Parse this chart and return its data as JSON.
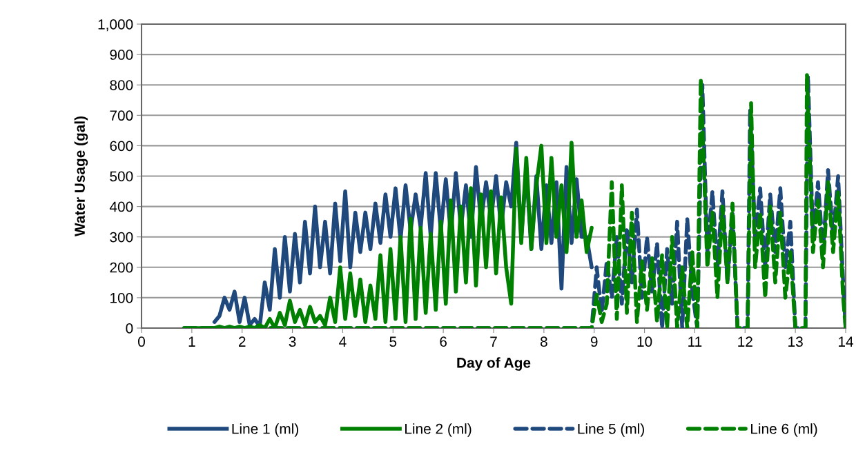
{
  "chart_data": {
    "type": "line",
    "xlabel": "Day of Age",
    "ylabel": "Water Usage (gal)",
    "xlim": [
      0,
      14
    ],
    "xticks": [
      0,
      1,
      2,
      3,
      4,
      5,
      6,
      7,
      8,
      9,
      10,
      11,
      12,
      13,
      14
    ],
    "ylim": [
      0,
      1000
    ],
    "yticks": [
      0,
      100,
      200,
      300,
      400,
      500,
      600,
      700,
      800,
      900,
      {
        "value": 1000,
        "label": "1,000"
      }
    ],
    "grid": "y",
    "legend": "bottom",
    "marker": "none",
    "series": [
      {
        "name": "Line 1 (ml)",
        "color": "#1f497d",
        "line_style": "solid",
        "x": [
          1.45,
          1.55,
          1.65,
          1.75,
          1.85,
          1.95,
          2.05,
          2.15,
          2.25,
          2.35,
          2.45,
          2.55,
          2.65,
          2.75,
          2.85,
          2.95,
          3.05,
          3.15,
          3.25,
          3.35,
          3.45,
          3.55,
          3.65,
          3.75,
          3.85,
          3.95,
          4.05,
          4.15,
          4.25,
          4.35,
          4.45,
          4.55,
          4.65,
          4.75,
          4.85,
          4.95,
          5.05,
          5.15,
          5.25,
          5.35,
          5.45,
          5.55,
          5.65,
          5.75,
          5.85,
          5.95,
          6.05,
          6.15,
          6.25,
          6.35,
          6.45,
          6.55,
          6.65,
          6.75,
          6.85,
          6.95,
          7.05,
          7.15,
          7.25,
          7.35,
          7.45,
          7.55,
          7.65,
          7.75,
          7.85,
          7.95,
          8.05,
          8.15,
          8.25,
          8.35,
          8.45,
          8.55,
          8.65,
          8.75,
          8.85,
          8.95
        ],
        "values": [
          20,
          40,
          100,
          60,
          120,
          20,
          100,
          10,
          30,
          5,
          150,
          60,
          260,
          100,
          300,
          120,
          310,
          150,
          350,
          180,
          400,
          200,
          350,
          180,
          410,
          220,
          450,
          200,
          380,
          250,
          380,
          260,
          410,
          280,
          440,
          300,
          460,
          290,
          470,
          320,
          440,
          330,
          510,
          300,
          510,
          320,
          490,
          310,
          510,
          330,
          470,
          300,
          530,
          350,
          480,
          360,
          500,
          330,
          480,
          400,
          610,
          300,
          520,
          260,
          500,
          260,
          470,
          280,
          480,
          130,
          530,
          280,
          490,
          300,
          300,
          200
        ]
      },
      {
        "name": "Line 2 (ml)",
        "color": "#008000",
        "line_style": "solid",
        "x": [
          0.85,
          0.95,
          1.05,
          1.15,
          1.25,
          1.35,
          1.45,
          1.55,
          1.65,
          1.75,
          1.85,
          1.95,
          2.05,
          2.15,
          2.25,
          2.35,
          2.45,
          2.55,
          2.65,
          2.75,
          2.85,
          2.95,
          3.05,
          3.15,
          3.25,
          3.35,
          3.45,
          3.55,
          3.65,
          3.75,
          3.85,
          3.95,
          4.05,
          4.15,
          4.25,
          4.35,
          4.45,
          4.55,
          4.65,
          4.75,
          4.85,
          4.95,
          5.05,
          5.15,
          5.25,
          5.35,
          5.45,
          5.55,
          5.65,
          5.75,
          5.85,
          5.95,
          6.05,
          6.15,
          6.25,
          6.35,
          6.45,
          6.55,
          6.65,
          6.75,
          6.85,
          6.95,
          7.05,
          7.15,
          7.25,
          7.35,
          7.45,
          7.55,
          7.65,
          7.75,
          7.85,
          7.95,
          8.05,
          8.15,
          8.25,
          8.35,
          8.45,
          8.55,
          8.65,
          8.75,
          8.85,
          8.95
        ],
        "values": [
          0,
          0,
          0,
          0,
          0,
          0,
          0,
          5,
          0,
          5,
          0,
          5,
          0,
          5,
          0,
          10,
          0,
          30,
          0,
          50,
          10,
          90,
          20,
          60,
          10,
          70,
          20,
          40,
          10,
          100,
          20,
          200,
          30,
          180,
          40,
          160,
          20,
          140,
          30,
          240,
          20,
          260,
          30,
          300,
          20,
          360,
          30,
          330,
          50,
          310,
          60,
          350,
          80,
          420,
          120,
          400,
          150,
          460,
          140,
          440,
          200,
          450,
          180,
          430,
          200,
          80,
          590,
          280,
          560,
          260,
          470,
          600,
          280,
          560,
          300,
          470,
          250,
          610,
          300,
          420,
          250,
          330
        ]
      },
      {
        "name": "Line 5 (ml)",
        "color": "#1f497d",
        "line_style": "dashed",
        "x": [
          0.85,
          8.85,
          8.95,
          9.05,
          9.15,
          9.25,
          9.35,
          9.45,
          9.55,
          9.65,
          9.75,
          9.85,
          9.95,
          10.05,
          10.15,
          10.25,
          10.35,
          10.45,
          10.55,
          10.65,
          10.75,
          10.85,
          10.95,
          11.05,
          11.15,
          11.25,
          11.35,
          11.45,
          11.55,
          11.65,
          11.75,
          11.85,
          11.95,
          12.05,
          12.1,
          12.2,
          12.3,
          12.4,
          12.5,
          12.6,
          12.7,
          12.8,
          12.9,
          13.0,
          13.1,
          13.2,
          13.25,
          13.35,
          13.45,
          13.55,
          13.65,
          13.75,
          13.85,
          13.95,
          14.0
        ],
        "values": [
          0,
          0,
          0,
          200,
          50,
          220,
          100,
          300,
          80,
          330,
          150,
          390,
          100,
          300,
          120,
          280,
          0,
          260,
          80,
          350,
          0,
          360,
          120,
          0,
          800,
          250,
          450,
          200,
          450,
          150,
          380,
          0,
          0,
          0,
          720,
          300,
          460,
          200,
          440,
          250,
          460,
          200,
          350,
          0,
          0,
          0,
          830,
          300,
          480,
          250,
          520,
          300,
          500,
          150,
          0
        ]
      },
      {
        "name": "Line 6 (ml)",
        "color": "#008000",
        "line_style": "dashed",
        "x": [
          0.85,
          8.85,
          8.95,
          9.05,
          9.15,
          9.25,
          9.35,
          9.45,
          9.55,
          9.65,
          9.75,
          9.85,
          9.95,
          10.05,
          10.15,
          10.25,
          10.35,
          10.45,
          10.55,
          10.65,
          10.75,
          10.85,
          10.95,
          11.05,
          11.12,
          11.25,
          11.35,
          11.45,
          11.55,
          11.65,
          11.75,
          11.85,
          11.95,
          12.05,
          12.12,
          12.2,
          12.3,
          12.4,
          12.5,
          12.6,
          12.7,
          12.8,
          12.9,
          13.0,
          13.1,
          13.2,
          13.23,
          13.35,
          13.45,
          13.55,
          13.65,
          13.75,
          13.85,
          13.95,
          14.0
        ],
        "values": [
          0,
          0,
          0,
          110,
          20,
          80,
          480,
          30,
          470,
          50,
          380,
          20,
          220,
          60,
          230,
          20,
          240,
          0,
          300,
          0,
          200,
          0,
          250,
          0,
          820,
          200,
          380,
          100,
          400,
          150,
          410,
          0,
          0,
          0,
          740,
          200,
          380,
          100,
          400,
          150,
          380,
          100,
          250,
          0,
          0,
          0,
          835,
          250,
          420,
          200,
          480,
          250,
          450,
          100,
          0
        ]
      }
    ]
  }
}
